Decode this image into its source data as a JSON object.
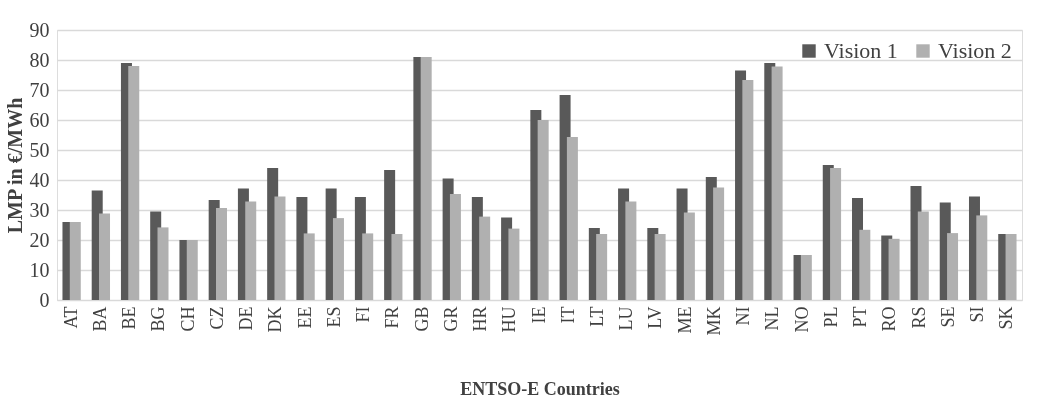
{
  "chart_data": {
    "type": "bar",
    "xlabel": "ENTSO-E Countries",
    "ylabel": "LMP in €/MWh",
    "categories": [
      "AT",
      "BA",
      "BE",
      "BG",
      "CH",
      "CZ",
      "DE",
      "DK",
      "EE",
      "ES",
      "FI",
      "FR",
      "GB",
      "GR",
      "HR",
      "HU",
      "IE",
      "IT",
      "LT",
      "LU",
      "LV",
      "ME",
      "MK",
      "NI",
      "NL",
      "NO",
      "PL",
      "PT",
      "RO",
      "RS",
      "SE",
      "SI",
      "SK"
    ],
    "series": [
      {
        "name": "Vision 1",
        "color": "#595959",
        "values": [
          26,
          36.5,
          79,
          29.5,
          20,
          33.3,
          37.2,
          44,
          34.3,
          37.2,
          34.3,
          43.3,
          81,
          40.5,
          34.3,
          27.5,
          63.3,
          68.3,
          24,
          37.2,
          24,
          37.2,
          41,
          76.5,
          79,
          15,
          45,
          34,
          21.5,
          38,
          32.5,
          34.5,
          22
        ]
      },
      {
        "name": "Vision 2",
        "color": "#b0b0b0",
        "values": [
          26,
          28.8,
          78,
          24.2,
          20,
          30.7,
          32.8,
          34.5,
          22.2,
          27.3,
          22.2,
          22,
          81,
          35.3,
          27.8,
          23.8,
          60,
          54.3,
          22,
          32.8,
          22,
          29.2,
          37.5,
          73.3,
          77.8,
          15,
          44,
          23.4,
          20.4,
          29.5,
          22.3,
          28.2,
          22
        ]
      }
    ],
    "ylim": [
      0,
      90
    ],
    "yticks": [
      0,
      10,
      20,
      30,
      40,
      50,
      60,
      70,
      80,
      90
    ],
    "grid": "y",
    "legend": "top right"
  }
}
